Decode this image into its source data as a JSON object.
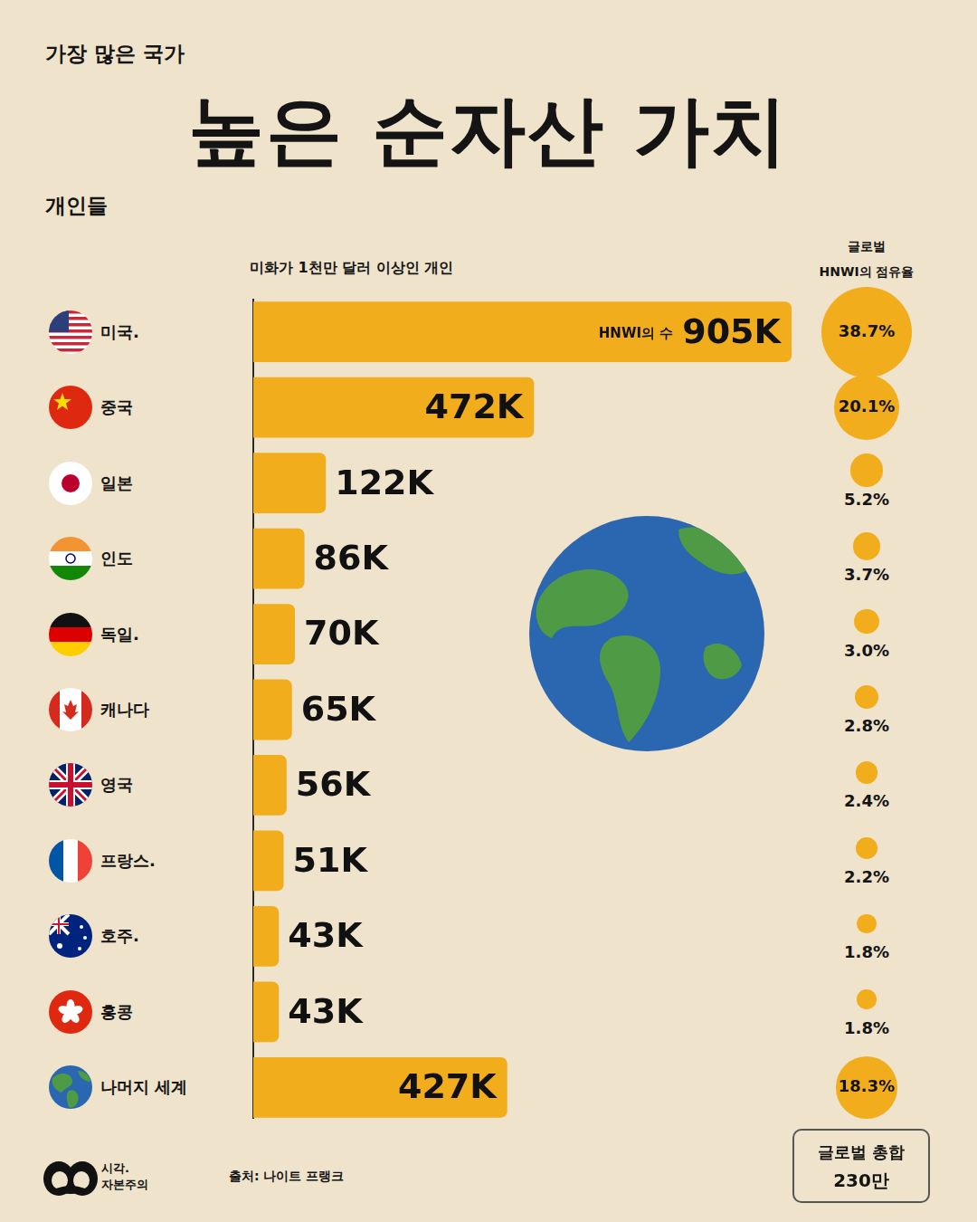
{
  "header": "가장 많은 국가",
  "title": "높은 순자산 가치",
  "subtitle": "개인들",
  "chart_data": {
    "type": "bar",
    "orientation": "horizontal",
    "x_label": "미화가 1천만 달러 이상인 개인",
    "categories": [
      "미국.",
      "중국",
      "일본",
      "인도",
      "독일.",
      "캐나다",
      "영국",
      "프랑스.",
      "호주.",
      "홍콩",
      "나머지 세계"
    ],
    "values": [
      905000,
      472000,
      122000,
      86000,
      70000,
      65000,
      56000,
      51000,
      43000,
      43000,
      427000
    ],
    "value_labels": [
      "905K",
      "472K",
      "122K",
      "86K",
      "70K",
      "65K",
      "56K",
      "51K",
      "43K",
      "43K",
      "427K"
    ],
    "annotations": [
      {
        "category": "미국.",
        "text": "HNWI의 수"
      }
    ],
    "color": "#f2ad1d",
    "xlim": [
      0,
      905000
    ],
    "grid": false,
    "data_labels": true,
    "tick_labels": false,
    "share_title": [
      "글로벌",
      "HNWI의 점유율"
    ],
    "shares": [
      38.7,
      20.1,
      5.2,
      3.7,
      3.0,
      2.8,
      2.4,
      2.2,
      1.8,
      1.8,
      18.3
    ],
    "share_labels": [
      "38.7%",
      "20.1%",
      "5.2%",
      "3.7%",
      "3.0%",
      "2.8%",
      "2.4%",
      "2.2%",
      "1.8%",
      "1.8%",
      "18.3%"
    ]
  },
  "total_box": {
    "title": "글로벌 총합",
    "text": "230만"
  },
  "source": "출처: 나이트 프랭크",
  "logo": [
    "시각.",
    "자본주의"
  ]
}
